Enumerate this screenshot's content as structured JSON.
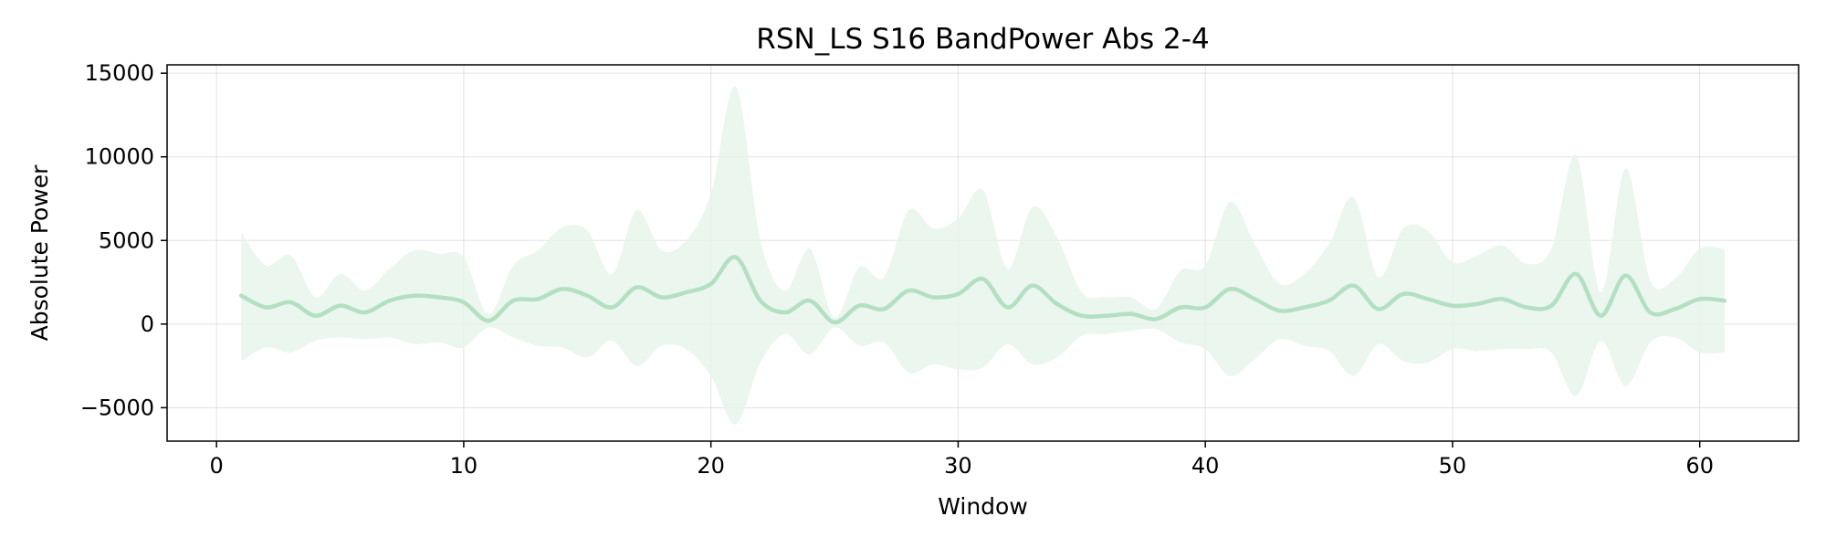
{
  "chart_data": {
    "type": "line",
    "title": "RSN_LS S16 BandPower Abs 2-4",
    "xlabel": "Window",
    "ylabel": "Absolute Power",
    "xlim": [
      -2,
      64
    ],
    "ylim": [
      -7000,
      15500
    ],
    "xticks": [
      0,
      10,
      20,
      30,
      40,
      50,
      60
    ],
    "yticks": [
      -5000,
      0,
      5000,
      10000,
      15000
    ],
    "ytick_labels": [
      "−5000",
      "0",
      "5000",
      "10000",
      "15000"
    ],
    "grid": true,
    "colors": {
      "line": "#b3e0c2",
      "band": "#e6f4ea",
      "band_opacity": 0.8
    },
    "series": [
      {
        "x": [
          1,
          2,
          3,
          4,
          5,
          6,
          7,
          8,
          9,
          10,
          11,
          12,
          13,
          14,
          15,
          16,
          17,
          18,
          19,
          20,
          21,
          22,
          23,
          24,
          25,
          26,
          27,
          28,
          29,
          30,
          31,
          32,
          33,
          34,
          35,
          36,
          37,
          38,
          39,
          40,
          41,
          42,
          43,
          44,
          45,
          46,
          47,
          48,
          49,
          50,
          51,
          52,
          53,
          54,
          55,
          56,
          57,
          58,
          59,
          60,
          61
        ],
        "mean": [
          1700,
          1000,
          1300,
          500,
          1100,
          700,
          1400,
          1700,
          1600,
          1300,
          200,
          1400,
          1500,
          2100,
          1700,
          1000,
          2200,
          1600,
          1900,
          2400,
          4000,
          1400,
          700,
          1400,
          100,
          1100,
          900,
          2000,
          1600,
          1800,
          2700,
          1000,
          2300,
          1200,
          500,
          500,
          600,
          300,
          1000,
          1000,
          2100,
          1500,
          800,
          1000,
          1400,
          2300,
          900,
          1800,
          1500,
          1100,
          1200,
          1500,
          1000,
          1100,
          3000,
          500,
          2900,
          700,
          900,
          1500,
          1400
        ],
        "upper": [
          5500,
          3500,
          4100,
          1600,
          3000,
          2000,
          3300,
          4400,
          4200,
          4000,
          600,
          3500,
          4400,
          5800,
          5600,
          3000,
          6800,
          4400,
          5000,
          7800,
          14200,
          5000,
          2000,
          4500,
          400,
          3400,
          2800,
          6800,
          5700,
          6300,
          8000,
          3300,
          7000,
          5200,
          1900,
          1600,
          1600,
          900,
          3200,
          3500,
          7300,
          4800,
          2400,
          3000,
          4800,
          7600,
          2800,
          5700,
          5600,
          3700,
          4100,
          4700,
          3600,
          4500,
          10100,
          1900,
          9300,
          2600,
          2700,
          4500,
          4500
        ],
        "lower": [
          -2200,
          -1400,
          -1700,
          -1000,
          -800,
          -900,
          -800,
          -1200,
          -1100,
          -1400,
          -200,
          -800,
          -1300,
          -1400,
          -2000,
          -1000,
          -2500,
          -1300,
          -1500,
          -3100,
          -6000,
          -2300,
          -600,
          -1800,
          -200,
          -1300,
          -1100,
          -2900,
          -2400,
          -2700,
          -2600,
          -1200,
          -2400,
          -2000,
          -700,
          -600,
          -400,
          -300,
          -1100,
          -1500,
          -3100,
          -2100,
          -900,
          -1300,
          -1600,
          -3100,
          -1200,
          -2200,
          -2300,
          -1500,
          -1600,
          -1500,
          -1500,
          -1700,
          -4300,
          -1000,
          -3700,
          -1100,
          -800,
          -1700,
          -1700
        ]
      }
    ]
  }
}
